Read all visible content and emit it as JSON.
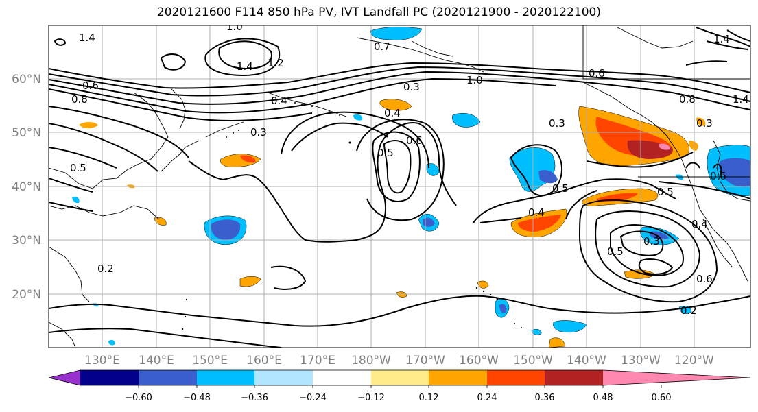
{
  "title": "2020121600 F114 850 hPa PV, IVT Landfall PC (2020121900 - 2020122100)",
  "lat_labels": [
    "60°N",
    "50°N",
    "40°N",
    "30°N",
    "20°N"
  ],
  "lon_labels": [
    "130°E",
    "140°E",
    "150°E",
    "160°E",
    "170°E",
    "180°W",
    "170°W",
    "160°W",
    "150°W",
    "140°W",
    "130°W",
    "120°W"
  ],
  "colorbar": {
    "colors": [
      "#9932cc",
      "#00008b",
      "#3a5fcd",
      "#00bfff",
      "#b2e5ff",
      "#ffffff",
      "#ffeb8a",
      "#ffa500",
      "#ff4500",
      "#b22222",
      "#ff88b0"
    ],
    "tick_labels": [
      "−0.60",
      "−0.48",
      "−0.36",
      "−0.24",
      "−0.12",
      "0.12",
      "0.24",
      "0.36",
      "0.48",
      "0.60"
    ]
  },
  "contour_labels": [
    "1.4",
    "1.0",
    "1.4",
    "1.2",
    "0.6",
    "0.8",
    "0.5",
    "0.3",
    "0.4",
    "0.7",
    "0.3",
    "0.4",
    "0.5",
    "0.6",
    "1.0",
    "0.6",
    "0.3",
    "0.5",
    "0.4",
    "0.5",
    "0.4",
    "0.3",
    "0.5",
    "0.6",
    "0.2",
    "0.2",
    "1.4",
    "0.8",
    "1.4",
    "0.3",
    "0.6"
  ]
}
